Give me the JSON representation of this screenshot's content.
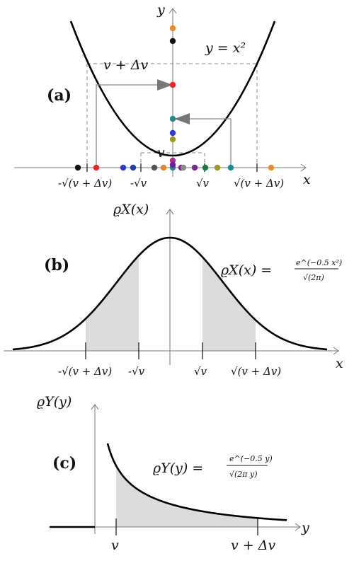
{
  "panel_a": {
    "label": "(a)",
    "y_axis": "y",
    "x_axis": "x",
    "curve_label": "y = x²",
    "v_label": "v",
    "v_plus_dv_label": "v + Δv",
    "ticks": [
      "-√(v + Δv)",
      "-√v",
      "√v",
      "√(v + Δv)"
    ],
    "dots_x": [
      {
        "color": "#111111"
      },
      {
        "color": "#e8262a"
      },
      {
        "color": "#2a3bd6"
      },
      {
        "color": "#1f3fa8"
      },
      {
        "color": "#555555"
      },
      {
        "color": "#e8822a"
      },
      {
        "color": "#1e8a8a"
      },
      {
        "color": "#7a1f8a"
      },
      {
        "color": "#8a8a8a"
      },
      {
        "color": "#7a2a8a"
      },
      {
        "color": "#1e7a3a"
      },
      {
        "color": "#9a9a20"
      },
      {
        "color": "#1e8a8a"
      },
      {
        "color": "#f08a28"
      }
    ],
    "dots_y": [
      {
        "color": "#f08a28"
      },
      {
        "color": "#111111"
      },
      {
        "color": "#e8262a"
      },
      {
        "color": "#1e8a8a"
      },
      {
        "color": "#2a3bd6"
      },
      {
        "color": "#9a9a20"
      },
      {
        "color": "#b02a8a"
      },
      {
        "color": "#6a1f9a"
      }
    ]
  },
  "panel_b": {
    "label": "(b)",
    "y_axis": "ϱX(x)",
    "x_axis": "x",
    "formula_lhs": "ϱX(x) =",
    "formula_num": "e^(−0.5 x²)",
    "formula_den": "√(2π)",
    "ticks": [
      "-√(v + Δv)",
      "-√v",
      "√v",
      "√(v + Δv)"
    ]
  },
  "panel_c": {
    "label": "(c)",
    "y_axis": "ϱY(y)",
    "x_axis": "y",
    "formula_lhs": "ϱY(y) =",
    "formula_num": "e^(−0.5 y)",
    "formula_den": "√(2π y)",
    "ticks": [
      "v",
      "v + Δv"
    ]
  }
}
